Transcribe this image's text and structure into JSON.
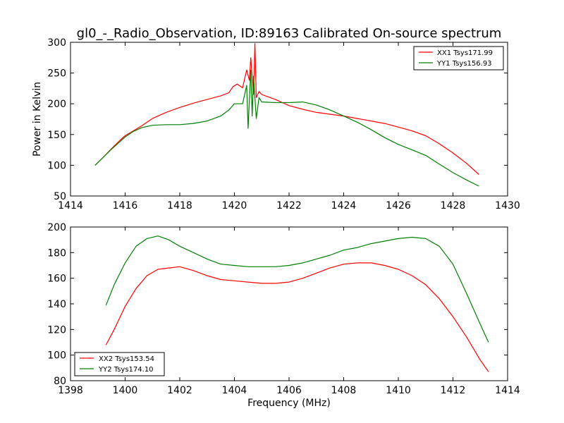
{
  "chart_data": [
    {
      "type": "line",
      "title": "gl0_-_Radio_Observation, ID:89163 Calibrated On-source spectrum",
      "xlabel": "",
      "ylabel": "Power in Kelvin",
      "xlim": [
        1414,
        1430
      ],
      "ylim": [
        50,
        300
      ],
      "xticks": [
        1414,
        1416,
        1418,
        1420,
        1422,
        1424,
        1426,
        1428,
        1430
      ],
      "yticks": [
        50,
        100,
        150,
        200,
        250,
        300
      ],
      "grid": false,
      "legend": "top-right",
      "series": [
        {
          "name": "XX1 Tsys171.99",
          "color": "#ff0000",
          "x": [
            1414.9,
            1415.2,
            1415.5,
            1415.8,
            1416.0,
            1416.3,
            1416.6,
            1417.0,
            1417.5,
            1418.0,
            1418.5,
            1419.0,
            1419.5,
            1419.8,
            1419.95,
            1420.1,
            1420.3,
            1420.45,
            1420.55,
            1420.6,
            1420.7,
            1420.75,
            1420.8,
            1420.9,
            1421.0,
            1421.5,
            1422.0,
            1422.5,
            1423.0,
            1423.5,
            1424.0,
            1424.5,
            1425.0,
            1425.5,
            1426.0,
            1426.5,
            1427.0,
            1427.5,
            1428.0,
            1428.5,
            1428.95
          ],
          "y": [
            100,
            113,
            127,
            140,
            148,
            156,
            164,
            176,
            186,
            194,
            201,
            207,
            213,
            218,
            228,
            232,
            226,
            255,
            238,
            275,
            215,
            298,
            210,
            220,
            215,
            207,
            197,
            191,
            186,
            183,
            180,
            176,
            172,
            168,
            162,
            156,
            148,
            135,
            120,
            103,
            85
          ]
        },
        {
          "name": "YY1 Tsys156.93",
          "color": "#008000",
          "x": [
            1414.9,
            1415.2,
            1415.5,
            1415.8,
            1416.0,
            1416.3,
            1416.6,
            1417.0,
            1417.5,
            1418.0,
            1418.5,
            1419.0,
            1419.5,
            1419.8,
            1420.0,
            1420.3,
            1420.45,
            1420.5,
            1420.6,
            1420.65,
            1420.7,
            1420.8,
            1420.9,
            1421.0,
            1421.5,
            1422.0,
            1422.5,
            1423.0,
            1423.5,
            1424.0,
            1424.5,
            1425.0,
            1425.5,
            1426.0,
            1426.5,
            1427.0,
            1427.5,
            1428.0,
            1428.5,
            1428.95
          ],
          "y": [
            100,
            113,
            126,
            138,
            146,
            155,
            161,
            165,
            166,
            166,
            168,
            172,
            180,
            190,
            200,
            200,
            230,
            160,
            255,
            180,
            245,
            176,
            210,
            203,
            202,
            202,
            203,
            198,
            190,
            180,
            170,
            158,
            145,
            134,
            125,
            116,
            102,
            88,
            76,
            66
          ]
        }
      ]
    },
    {
      "type": "line",
      "title": "",
      "xlabel": "Frequency (MHz)",
      "ylabel": "",
      "xlim": [
        1398,
        1414
      ],
      "ylim": [
        80,
        200
      ],
      "xticks": [
        1398,
        1400,
        1402,
        1404,
        1406,
        1408,
        1410,
        1412,
        1414
      ],
      "yticks": [
        80,
        100,
        120,
        140,
        160,
        180,
        200
      ],
      "grid": false,
      "legend": "bottom-left",
      "series": [
        {
          "name": "XX2 Tsys153.54",
          "color": "#ff0000",
          "x": [
            1399.3,
            1399.6,
            1400.0,
            1400.4,
            1400.8,
            1401.2,
            1401.6,
            1402.0,
            1402.5,
            1403.0,
            1403.5,
            1404.0,
            1404.5,
            1405.0,
            1405.5,
            1406.0,
            1406.5,
            1407.0,
            1407.5,
            1408.0,
            1408.5,
            1409.0,
            1409.5,
            1410.0,
            1410.5,
            1411.0,
            1411.5,
            1412.0,
            1412.5,
            1413.0,
            1413.3
          ],
          "y": [
            108,
            120,
            138,
            152,
            162,
            167,
            168,
            169,
            166,
            162,
            159,
            158,
            157,
            156,
            156,
            157,
            160,
            164,
            168,
            171,
            172,
            172,
            170,
            167,
            162,
            155,
            144,
            130,
            114,
            96,
            87
          ]
        },
        {
          "name": "YY2 Tsys174.10",
          "color": "#008000",
          "x": [
            1399.3,
            1399.6,
            1400.0,
            1400.4,
            1400.8,
            1401.2,
            1401.6,
            1402.0,
            1402.5,
            1403.0,
            1403.5,
            1404.0,
            1404.5,
            1405.0,
            1405.5,
            1406.0,
            1406.5,
            1407.0,
            1407.5,
            1408.0,
            1408.5,
            1409.0,
            1409.5,
            1410.0,
            1410.5,
            1411.0,
            1411.5,
            1412.0,
            1412.5,
            1413.0,
            1413.3
          ],
          "y": [
            139,
            155,
            172,
            185,
            191,
            193,
            190,
            185,
            180,
            175,
            171,
            170,
            169,
            169,
            169,
            170,
            172,
            175,
            178,
            182,
            184,
            187,
            189,
            191,
            192,
            191,
            185,
            171,
            148,
            124,
            110
          ]
        }
      ]
    }
  ]
}
